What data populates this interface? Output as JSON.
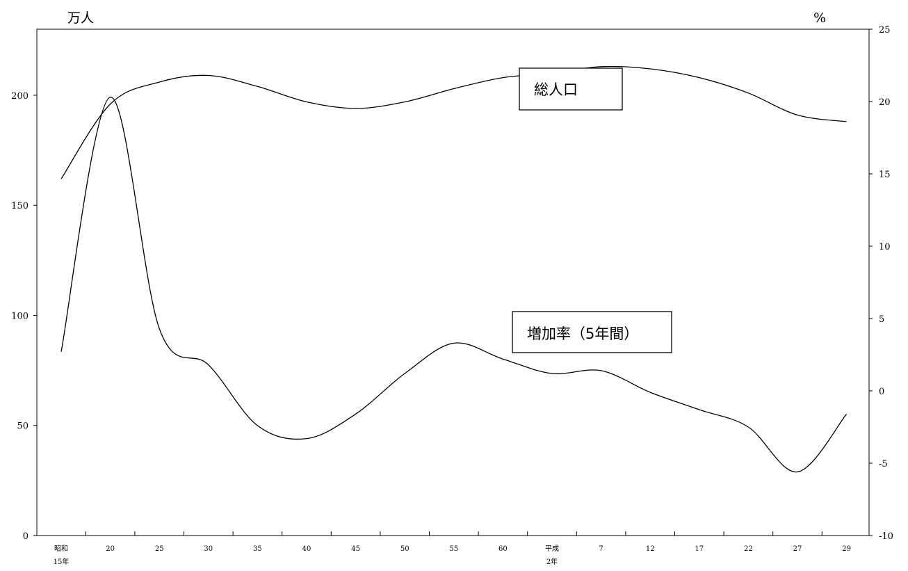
{
  "chart_data": {
    "type": "line",
    "title": "",
    "left_axis": {
      "unit": "万人",
      "range": [
        0,
        230
      ],
      "ticks": [
        0,
        50,
        100,
        150,
        200
      ]
    },
    "right_axis": {
      "unit": "%",
      "range": [
        -10,
        25
      ],
      "ticks": [
        -10,
        -5,
        0,
        5,
        10,
        15,
        20,
        25
      ]
    },
    "categories": [
      "昭和15年",
      "20",
      "25",
      "30",
      "35",
      "40",
      "45",
      "50",
      "55",
      "60",
      "平成2年",
      "7",
      "12",
      "17",
      "22",
      "27",
      "29"
    ],
    "x_tick_labels": [
      {
        "line1": "昭和",
        "line2": "15年"
      },
      {
        "line1": "20",
        "line2": ""
      },
      {
        "line1": "25",
        "line2": ""
      },
      {
        "line1": "30",
        "line2": ""
      },
      {
        "line1": "35",
        "line2": ""
      },
      {
        "line1": "40",
        "line2": ""
      },
      {
        "line1": "45",
        "line2": ""
      },
      {
        "line1": "50",
        "line2": ""
      },
      {
        "line1": "55",
        "line2": ""
      },
      {
        "line1": "60",
        "line2": ""
      },
      {
        "line1": "平成",
        "line2": "2年"
      },
      {
        "line1": "7",
        "line2": ""
      },
      {
        "line1": "12",
        "line2": ""
      },
      {
        "line1": "17",
        "line2": ""
      },
      {
        "line1": "22",
        "line2": ""
      },
      {
        "line1": "27",
        "line2": ""
      },
      {
        "line1": "29",
        "line2": ""
      }
    ],
    "series": [
      {
        "name": "総人口",
        "axis": "left",
        "values": [
          162,
          196,
          206,
          209,
          204,
          197,
          194,
          197,
          203,
          208,
          210,
          213,
          212,
          208,
          201,
          191,
          188
        ]
      },
      {
        "name": "増加率（5年間）",
        "axis": "right",
        "values": [
          2.7,
          20.3,
          4.3,
          1.8,
          -2.4,
          -3.3,
          -1.6,
          1.2,
          3.3,
          2.2,
          1.2,
          1.4,
          -0.1,
          -1.3,
          -2.5,
          -5.6,
          -1.6
        ]
      }
    ],
    "grid": false,
    "legend": "inline callouts"
  }
}
